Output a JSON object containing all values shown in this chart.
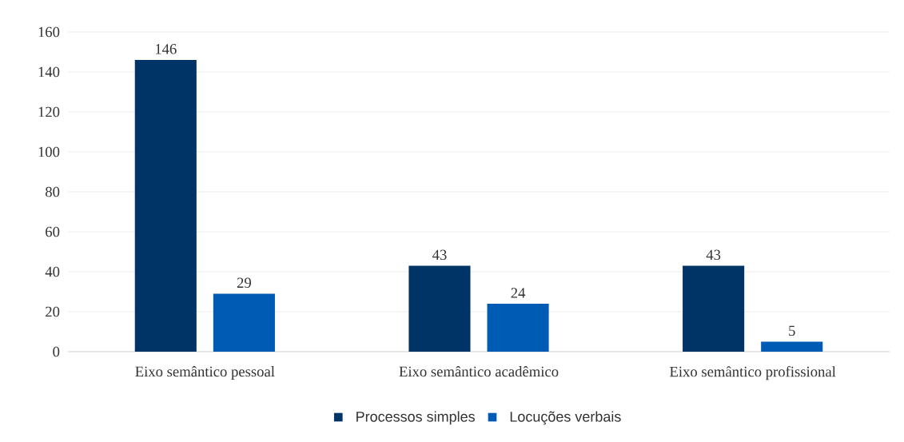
{
  "chart_data": {
    "type": "bar",
    "categories": [
      "Eixo semântico pessoal",
      "Eixo semântico acadêmico",
      "Eixo semântico profissional"
    ],
    "series": [
      {
        "name": "Processos simples",
        "color": "#003366",
        "values": [
          146,
          43,
          43
        ]
      },
      {
        "name": "Locuções verbais",
        "color": "#005bb5",
        "values": [
          29,
          24,
          5
        ]
      }
    ],
    "ylim": [
      0,
      160
    ],
    "yticks": [
      0,
      20,
      40,
      60,
      80,
      100,
      120,
      140,
      160
    ],
    "grid": "y",
    "legend": "bottom",
    "data_labels": true
  }
}
